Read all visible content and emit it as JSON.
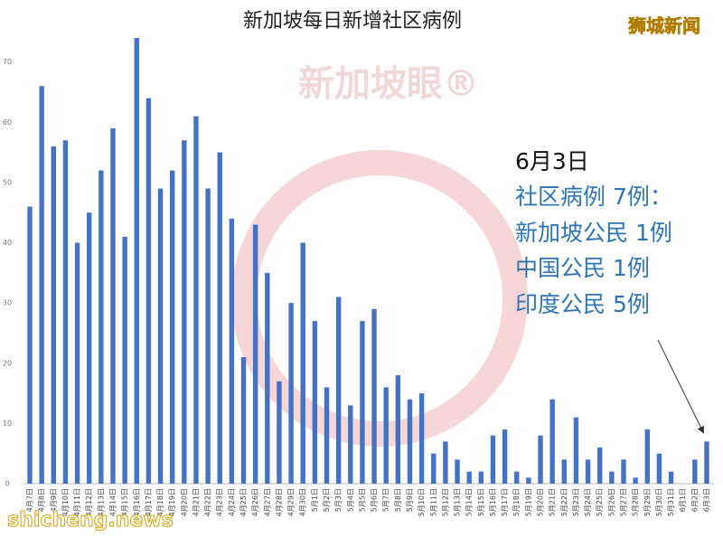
{
  "chart_data": {
    "type": "bar",
    "title": "新加坡每日新增社区病例",
    "watermark": "狮城新闻",
    "center_watermark": "新加坡眼®",
    "footer_watermark": "shicheng.news",
    "annotation": {
      "date": "6月3日",
      "lines": [
        "社区病例 7例：",
        "新加坡公民 1例",
        "中国公民 1例",
        "印度公民 5例"
      ]
    },
    "categories": [
      "4月7日",
      "4月8日",
      "4月9日",
      "4月10日",
      "4月11日",
      "4月12日",
      "4月13日",
      "4月14日",
      "4月15日",
      "4月16日",
      "4月17日",
      "4月18日",
      "4月19日",
      "4月20日",
      "4月21日",
      "4月22日",
      "4月23日",
      "4月24日",
      "4月25日",
      "4月26日",
      "4月27日",
      "4月28日",
      "4月29日",
      "4月30日",
      "5月1日",
      "5月2日",
      "5月3日",
      "5月4日",
      "5月5日",
      "5月6日",
      "5月7日",
      "5月8日",
      "5月9日",
      "5月10日",
      "5月11日",
      "5月12日",
      "5月13日",
      "5月14日",
      "5月15日",
      "5月16日",
      "5月17日",
      "5月18日",
      "5月19日",
      "5月20日",
      "5月21日",
      "5月22日",
      "5月23日",
      "5月24日",
      "5月25日",
      "5月26日",
      "5月27日",
      "5月28日",
      "5月29日",
      "5月30日",
      "5月31日",
      "6月1日",
      "6月2日",
      "6月3日"
    ],
    "values": [
      46,
      66,
      56,
      57,
      40,
      45,
      52,
      59,
      41,
      74,
      64,
      49,
      52,
      57,
      61,
      49,
      55,
      44,
      21,
      43,
      35,
      17,
      30,
      40,
      27,
      16,
      31,
      13,
      27,
      29,
      16,
      18,
      14,
      15,
      5,
      7,
      4,
      2,
      2,
      8,
      9,
      2,
      1,
      8,
      14,
      4,
      11,
      4,
      6,
      2,
      4,
      1,
      9,
      5,
      2,
      0,
      4,
      7
    ],
    "color": "#4472c4",
    "ylim": [
      0,
      80
    ],
    "yticks": [
      0,
      10,
      20,
      30,
      40,
      50,
      60,
      70
    ],
    "grid": false
  }
}
